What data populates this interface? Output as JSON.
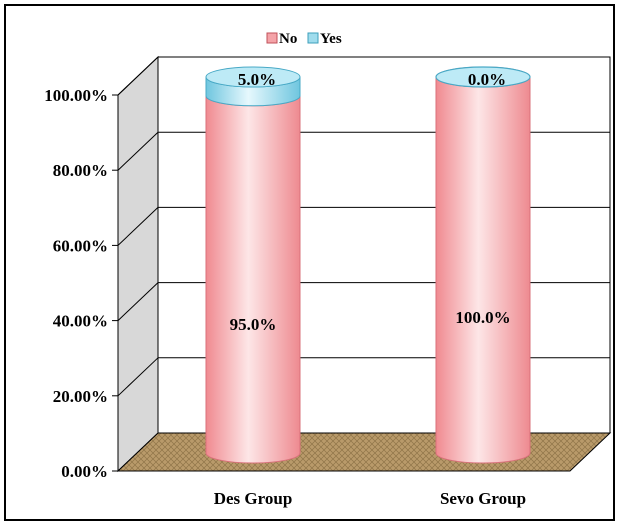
{
  "chart_data": {
    "type": "bar",
    "stacked": true,
    "style": "3d-cylinder",
    "categories": [
      "Des Group",
      "Sevo Group"
    ],
    "series": [
      {
        "name": "No",
        "values": [
          95.0,
          100.0
        ],
        "labels": [
          "95.0%",
          "100.0%"
        ],
        "color": "#f4a3a8"
      },
      {
        "name": "Yes",
        "values": [
          5.0,
          0.0
        ],
        "labels": [
          "5.0%",
          "0.0%"
        ],
        "color": "#9fdced"
      }
    ],
    "y_ticks": [
      "0.00%",
      "20.00%",
      "40.00%",
      "60.00%",
      "80.00%",
      "100.00%"
    ],
    "ylim": [
      0,
      100
    ],
    "grid": true,
    "legend_position": "top",
    "floor_color": "#b99a6a"
  }
}
